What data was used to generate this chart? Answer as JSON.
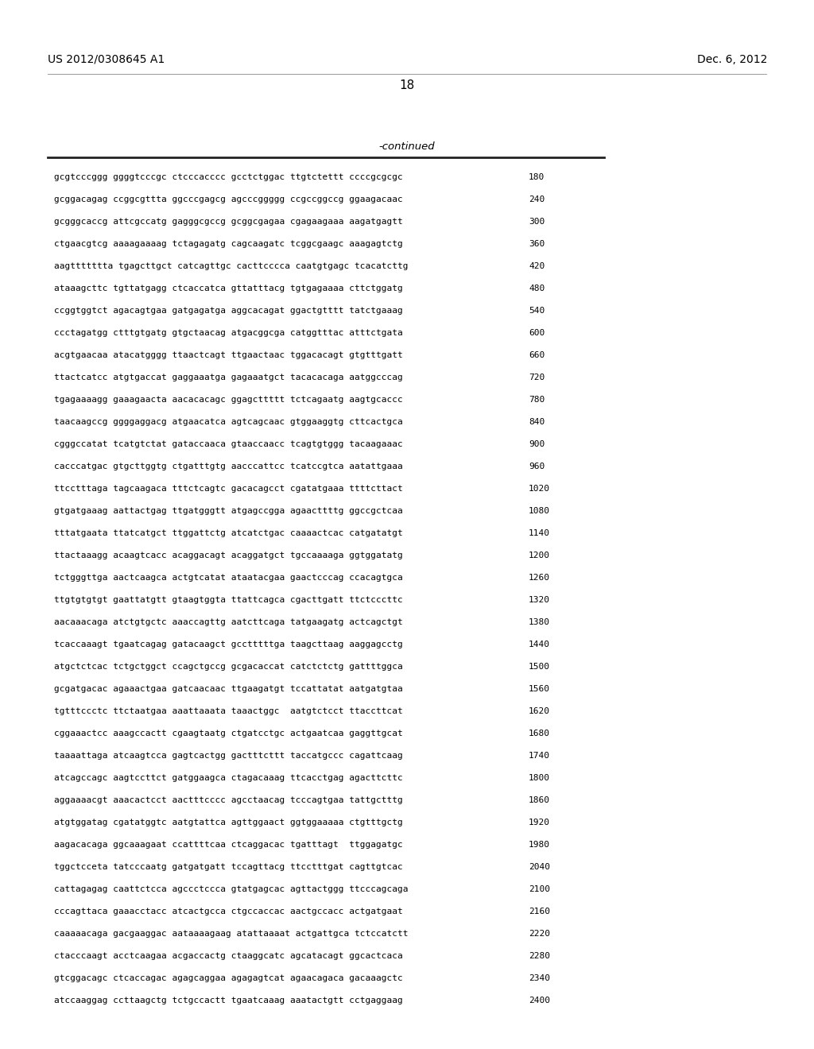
{
  "header_left": "US 2012/0308645 A1",
  "header_right": "Dec. 6, 2012",
  "page_number": "18",
  "continued_label": "-continued",
  "background_color": "#ffffff",
  "text_color": "#000000",
  "sequences": [
    {
      "seq": "gcgtcccggg ggggtcccgc ctcccacccc gcctctggac ttgtctettt ccccgcgcgc",
      "num": "180"
    },
    {
      "seq": "gcggacagag ccggcgttta ggcccgagcg agcccggggg ccgccggccg ggaagacaac",
      "num": "240"
    },
    {
      "seq": "gcgggcaccg attcgccatg gagggcgccg gcggcgagaa cgagaagaaa aagatgagtt",
      "num": "300"
    },
    {
      "seq": "ctgaacgtcg aaaagaaaag tctagagatg cagcaagatc tcggcgaagc aaagagtctg",
      "num": "360"
    },
    {
      "seq": "aagttttttta tgagcttgct catcagttgc cacttcccca caatgtgagc tcacatcttg",
      "num": "420"
    },
    {
      "seq": "ataaagcttc tgttatgagg ctcaccatca gttatttacg tgtgagaaaa cttctggatg",
      "num": "480"
    },
    {
      "seq": "ccggtggtct agacagtgaa gatgagatga aggcacagat ggactgtttt tatctgaaag",
      "num": "540"
    },
    {
      "seq": "ccctagatgg ctttgtgatg gtgctaacag atgacggcga catggtttac atttctgata",
      "num": "600"
    },
    {
      "seq": "acgtgaacaa atacatgggg ttaactcagt ttgaactaac tggacacagt gtgtttgatt",
      "num": "660"
    },
    {
      "seq": "ttactcatcc atgtgaccat gaggaaatga gagaaatgct tacacacaga aatggcccag",
      "num": "720"
    },
    {
      "seq": "tgagaaaagg gaaagaacta aacacacagc ggagcttttt tctcagaatg aagtgcaccc",
      "num": "780"
    },
    {
      "seq": "taacaagccg ggggaggacg atgaacatca agtcagcaac gtggaaggtg cttcactgca",
      "num": "840"
    },
    {
      "seq": "cgggccatat tcatgtctat gataccaaca gtaaccaacc tcagtgtggg tacaagaaac",
      "num": "900"
    },
    {
      "seq": "cacccatgac gtgcttggtg ctgatttgtg aacccattcc tcatccgtca aatattgaaa",
      "num": "960"
    },
    {
      "seq": "ttcctttaga tagcaagaca tttctcagtc gacacagcct cgatatgaaa ttttcttact",
      "num": "1020"
    },
    {
      "seq": "gtgatgaaag aattactgag ttgatgggtt atgagccgga agaacttttg ggccgctcaa",
      "num": "1080"
    },
    {
      "seq": "tttatgaata ttatcatgct ttggattctg atcatctgac caaaactcac catgatatgt",
      "num": "1140"
    },
    {
      "seq": "ttactaaagg acaagtcacc acaggacagt acaggatgct tgccaaaaga ggtggatatg",
      "num": "1200"
    },
    {
      "seq": "tctgggttga aactcaagca actgtcatat ataatacgaa gaactcccag ccacagtgca",
      "num": "1260"
    },
    {
      "seq": "ttgtgtgtgt gaattatgtt gtaagtggta ttattcagca cgacttgatt ttctcccttc",
      "num": "1320"
    },
    {
      "seq": "aacaaacaga atctgtgctc aaaccagttg aatcttcaga tatgaagatg actcagctgt",
      "num": "1380"
    },
    {
      "seq": "tcaccaaagt tgaatcagag gatacaagct gcctttttga taagcttaag aaggagcctg",
      "num": "1440"
    },
    {
      "seq": "atgctctcac tctgctggct ccagctgccg gcgacaccat catctctctg gattttggca",
      "num": "1500"
    },
    {
      "seq": "gcgatgacac agaaactgaa gatcaacaac ttgaagatgt tccattatat aatgatgtaa",
      "num": "1560"
    },
    {
      "seq": "tgtttccctc ttctaatgaa aaattaaata taaactggc  aatgtctcct ttaccttcat",
      "num": "1620"
    },
    {
      "seq": "cggaaactcc aaagccactt cgaagtaatg ctgatcctgc actgaatcaa gaggttgcat",
      "num": "1680"
    },
    {
      "seq": "taaaattaga atcaagtcca gagtcactgg gactttcttt taccatgccc cagattcaag",
      "num": "1740"
    },
    {
      "seq": "atcagccagc aagtccttct gatggaagca ctagacaaag ttcacctgag agacttcttc",
      "num": "1800"
    },
    {
      "seq": "aggaaaacgt aaacactcct aactttcccc agcctaacag tcccagtgaa tattgctttg",
      "num": "1860"
    },
    {
      "seq": "atgtggatag cgatatggtc aatgtattca agttggaact ggtggaaaaa ctgtttgctg",
      "num": "1920"
    },
    {
      "seq": "aagacacaga ggcaaagaat ccattttcaa ctcaggacac tgatttagt  ttggagatgc",
      "num": "1980"
    },
    {
      "seq": "tggctcceta tatcccaatg gatgatgatt tccagttacg ttcctttgat cagttgtcac",
      "num": "2040"
    },
    {
      "seq": "cattagagag caattctcca agccctccca gtatgagcac agttactggg ttcccagcaga",
      "num": "2100"
    },
    {
      "seq": "cccagttaca gaaacctacc atcactgcca ctgccaccac aactgccacc actgatgaat",
      "num": "2160"
    },
    {
      "seq": "caaaaacaga gacgaaggac aataaaagaag atattaaaat actgattgca tctccatctt",
      "num": "2220"
    },
    {
      "seq": "ctacccaagt acctcaagaa acgaccactg ctaaggcatc agcatacagt ggcactcaca",
      "num": "2280"
    },
    {
      "seq": "gtcggacagc ctcaccagac agagcaggaa agagagtcat agaacagaca gacaaagctc",
      "num": "2340"
    },
    {
      "seq": "atccaaggag ccttaagctg tctgccactt tgaatcaaag aaatactgtt cctgaggaag",
      "num": "2400"
    }
  ]
}
